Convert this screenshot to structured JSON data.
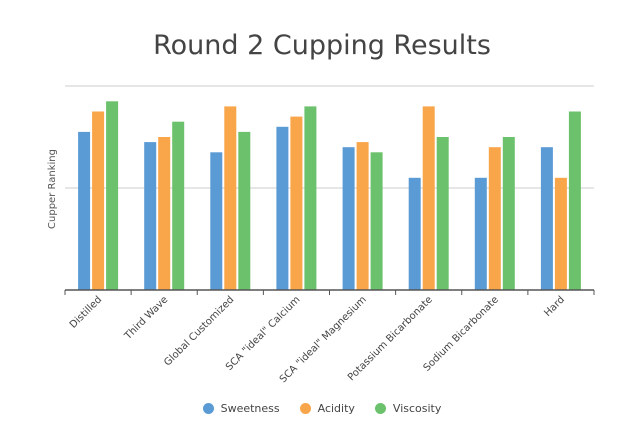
{
  "chart_data": {
    "type": "bar",
    "title": "Round 2 Cupping Results",
    "ylabel": "Cupper Ranking",
    "xlabel": "",
    "ylim": [
      0,
      4
    ],
    "gridlines": [
      2,
      4
    ],
    "grid": true,
    "legend_position": "bottom-center",
    "categories": [
      "Distilled",
      "Third Wave",
      "Global Customized",
      "SCA \"ideal\" Calcium",
      "SCA \"ideal\" Magnesium",
      "Potassium Bicarbonate",
      "Sodium Bicarbonate",
      "Hard"
    ],
    "series": [
      {
        "name": "Sweetness",
        "color": "#5b9bd5",
        "values": [
          3.1,
          2.9,
          2.7,
          3.2,
          2.8,
          2.2,
          2.2,
          2.8
        ]
      },
      {
        "name": "Acidity",
        "color": "#f9a54a",
        "values": [
          3.5,
          3.0,
          3.6,
          3.4,
          2.9,
          3.6,
          2.8,
          2.2
        ]
      },
      {
        "name": "Viscosity",
        "color": "#6cc16c",
        "values": [
          3.7,
          3.3,
          3.1,
          3.6,
          2.7,
          3.0,
          3.0,
          3.5
        ]
      }
    ]
  }
}
